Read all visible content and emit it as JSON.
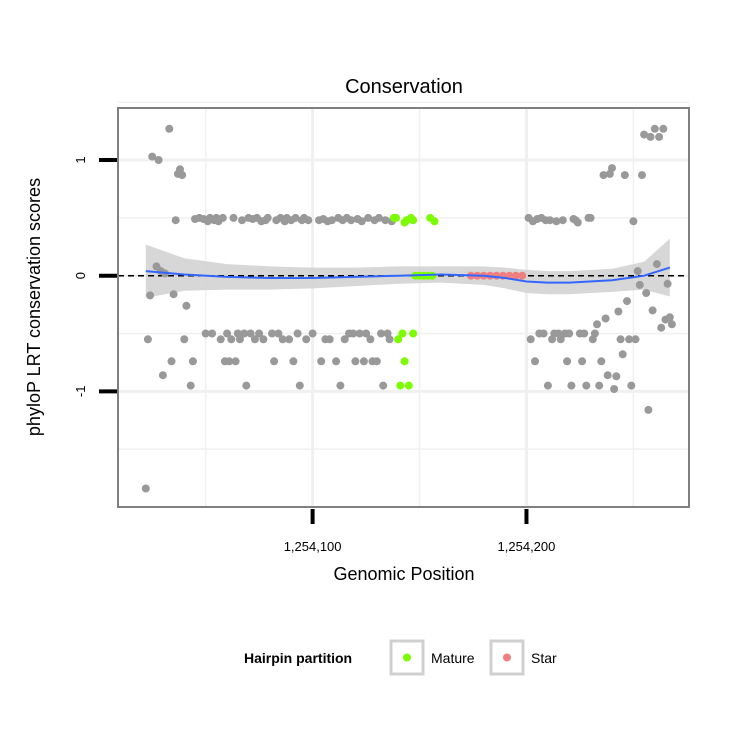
{
  "chart_data": {
    "type": "scatter",
    "title": "Conservation",
    "xlabel": "Genomic Position",
    "ylabel": "phyloP LRT conservation scores",
    "xlim": [
      1254009,
      1254276
    ],
    "ylim": [
      -2,
      1.45
    ],
    "x_ticks": [
      {
        "value": 1254100,
        "label": "1,254,100"
      },
      {
        "value": 1254200,
        "label": "1,254,200"
      }
    ],
    "y_ticks": [
      {
        "value": 1,
        "label": "1"
      },
      {
        "value": 0,
        "label": "0"
      },
      {
        "value": -1,
        "label": "-1"
      }
    ],
    "reference_line": {
      "y": 0,
      "style": "dashed",
      "color": "#000000"
    },
    "colors": {
      "background": "#ffffff",
      "gridline": "#f0f0f0",
      "panel_border": "#7f7f7f",
      "point_default": "#999999",
      "mature": "#7cfc00",
      "star": "#f08080",
      "smooth_line": "#3366ff",
      "ribbon": "#d3d3d3"
    },
    "partitions": [
      {
        "name": "Mature",
        "x_range": [
          1254143,
          1254157
        ]
      },
      {
        "name": "Star",
        "x_range": [
          1254174,
          1254200
        ]
      }
    ],
    "legend": {
      "title": "Hairpin partition",
      "position": "bottom",
      "entries": [
        {
          "label": "Mature",
          "color": "#7cfc00"
        },
        {
          "label": "Star",
          "color": "#f08080"
        }
      ]
    },
    "smooth": {
      "x": [
        1254022,
        1254040,
        1254060,
        1254080,
        1254100,
        1254120,
        1254140,
        1254160,
        1254180,
        1254190,
        1254200,
        1254210,
        1254220,
        1254240,
        1254255,
        1254267
      ],
      "y": [
        0.04,
        0.01,
        -0.01,
        -0.02,
        -0.02,
        -0.01,
        0.0,
        0.01,
        0.0,
        -0.02,
        -0.05,
        -0.06,
        -0.06,
        -0.04,
        0.0,
        0.07
      ],
      "upper": [
        0.27,
        0.15,
        0.1,
        0.08,
        0.07,
        0.07,
        0.08,
        0.08,
        0.08,
        0.07,
        0.05,
        0.04,
        0.04,
        0.06,
        0.12,
        0.32
      ],
      "lower": [
        -0.19,
        -0.13,
        -0.12,
        -0.12,
        -0.11,
        -0.09,
        -0.07,
        -0.06,
        -0.08,
        -0.11,
        -0.15,
        -0.16,
        -0.16,
        -0.14,
        -0.12,
        -0.18
      ]
    },
    "series": [
      {
        "name": "Other",
        "color": "#999999",
        "points": [
          [
            1254022,
            -1.84
          ],
          [
            1254023,
            -0.55
          ],
          [
            1254024,
            -0.17
          ],
          [
            1254025,
            1.03
          ],
          [
            1254027,
            0.08
          ],
          [
            1254028,
            1.0
          ],
          [
            1254029,
            0.04
          ],
          [
            1254030,
            -0.86
          ],
          [
            1254031,
            0.02
          ],
          [
            1254033,
            1.27
          ],
          [
            1254034,
            -0.74
          ],
          [
            1254035,
            -0.16
          ],
          [
            1254036,
            0.48
          ],
          [
            1254037,
            0.88
          ],
          [
            1254038,
            0.92
          ],
          [
            1254039,
            0.87
          ],
          [
            1254040,
            -0.55
          ],
          [
            1254041,
            -0.26
          ],
          [
            1254043,
            -0.95
          ],
          [
            1254044,
            -0.74
          ],
          [
            1254045,
            0.49
          ],
          [
            1254047,
            0.5
          ],
          [
            1254049,
            0.49
          ],
          [
            1254050,
            -0.5
          ],
          [
            1254051,
            0.47
          ],
          [
            1254052,
            0.5
          ],
          [
            1254053,
            -0.5
          ],
          [
            1254054,
            0.48
          ],
          [
            1254055,
            0.5
          ],
          [
            1254056,
            0.47
          ],
          [
            1254057,
            -0.55
          ],
          [
            1254058,
            0.5
          ],
          [
            1254059,
            -0.74
          ],
          [
            1254060,
            -0.5
          ],
          [
            1254061,
            -0.74
          ],
          [
            1254062,
            -0.55
          ],
          [
            1254063,
            0.5
          ],
          [
            1254064,
            -0.74
          ],
          [
            1254065,
            -0.5
          ],
          [
            1254066,
            -0.55
          ],
          [
            1254067,
            0.48
          ],
          [
            1254068,
            -0.5
          ],
          [
            1254069,
            -0.95
          ],
          [
            1254070,
            0.5
          ],
          [
            1254071,
            -0.5
          ],
          [
            1254072,
            0.49
          ],
          [
            1254073,
            -0.55
          ],
          [
            1254074,
            0.5
          ],
          [
            1254075,
            -0.5
          ],
          [
            1254076,
            0.47
          ],
          [
            1254077,
            -0.55
          ],
          [
            1254078,
            0.48
          ],
          [
            1254079,
            0.5
          ],
          [
            1254081,
            -0.5
          ],
          [
            1254082,
            -0.74
          ],
          [
            1254083,
            0.48
          ],
          [
            1254084,
            -0.5
          ],
          [
            1254085,
            0.5
          ],
          [
            1254086,
            -0.55
          ],
          [
            1254087,
            0.47
          ],
          [
            1254088,
            0.5
          ],
          [
            1254089,
            -0.55
          ],
          [
            1254090,
            0.48
          ],
          [
            1254091,
            -0.74
          ],
          [
            1254092,
            0.5
          ],
          [
            1254093,
            -0.5
          ],
          [
            1254094,
            -0.95
          ],
          [
            1254095,
            0.48
          ],
          [
            1254096,
            0.5
          ],
          [
            1254097,
            -0.55
          ],
          [
            1254098,
            0.48
          ],
          [
            1254100,
            -0.5
          ],
          [
            1254103,
            0.48
          ],
          [
            1254104,
            -0.74
          ],
          [
            1254105,
            0.49
          ],
          [
            1254106,
            -0.55
          ],
          [
            1254107,
            0.47
          ],
          [
            1254108,
            -0.55
          ],
          [
            1254109,
            0.48
          ],
          [
            1254111,
            -0.74
          ],
          [
            1254112,
            0.5
          ],
          [
            1254113,
            -0.95
          ],
          [
            1254114,
            0.48
          ],
          [
            1254115,
            -0.55
          ],
          [
            1254116,
            0.5
          ],
          [
            1254117,
            -0.5
          ],
          [
            1254118,
            0.48
          ],
          [
            1254119,
            -0.5
          ],
          [
            1254120,
            -0.74
          ],
          [
            1254121,
            0.49
          ],
          [
            1254122,
            -0.5
          ],
          [
            1254123,
            0.47
          ],
          [
            1254124,
            -0.74
          ],
          [
            1254125,
            -0.5
          ],
          [
            1254126,
            0.5
          ],
          [
            1254127,
            -0.55
          ],
          [
            1254128,
            -0.74
          ],
          [
            1254129,
            0.48
          ],
          [
            1254130,
            -0.74
          ],
          [
            1254131,
            0.5
          ],
          [
            1254132,
            -0.5
          ],
          [
            1254133,
            -0.95
          ],
          [
            1254134,
            0.48
          ],
          [
            1254135,
            -0.5
          ],
          [
            1254136,
            -0.55
          ],
          [
            1254137,
            0.47
          ],
          [
            1254201,
            0.5
          ],
          [
            1254202,
            -0.55
          ],
          [
            1254203,
            0.47
          ],
          [
            1254204,
            -0.74
          ],
          [
            1254205,
            0.49
          ],
          [
            1254206,
            -0.5
          ],
          [
            1254207,
            0.5
          ],
          [
            1254208,
            -0.5
          ],
          [
            1254209,
            0.48
          ],
          [
            1254210,
            -0.95
          ],
          [
            1254211,
            0.48
          ],
          [
            1254212,
            -0.55
          ],
          [
            1254213,
            -0.5
          ],
          [
            1254214,
            0.47
          ],
          [
            1254215,
            -0.5
          ],
          [
            1254216,
            -0.55
          ],
          [
            1254217,
            0.48
          ],
          [
            1254218,
            -0.5
          ],
          [
            1254219,
            -0.74
          ],
          [
            1254220,
            -0.5
          ],
          [
            1254221,
            -0.95
          ],
          [
            1254222,
            0.49
          ],
          [
            1254223,
            0.48
          ],
          [
            1254224,
            0.46
          ],
          [
            1254225,
            -0.5
          ],
          [
            1254226,
            -0.74
          ],
          [
            1254227,
            -0.5
          ],
          [
            1254228,
            -0.95
          ],
          [
            1254229,
            0.5
          ],
          [
            1254230,
            0.5
          ],
          [
            1254231,
            -0.55
          ],
          [
            1254232,
            -0.5
          ],
          [
            1254233,
            -0.42
          ],
          [
            1254234,
            -0.95
          ],
          [
            1254235,
            -0.74
          ],
          [
            1254236,
            0.87
          ],
          [
            1254237,
            -0.37
          ],
          [
            1254238,
            -0.86
          ],
          [
            1254239,
            0.88
          ],
          [
            1254240,
            0.93
          ],
          [
            1254241,
            -0.98
          ],
          [
            1254242,
            -0.87
          ],
          [
            1254243,
            -0.31
          ],
          [
            1254244,
            -0.55
          ],
          [
            1254245,
            -0.68
          ],
          [
            1254246,
            0.87
          ],
          [
            1254247,
            -0.22
          ],
          [
            1254248,
            -0.55
          ],
          [
            1254249,
            -0.95
          ],
          [
            1254250,
            0.47
          ],
          [
            1254251,
            -0.55
          ],
          [
            1254252,
            0.04
          ],
          [
            1254253,
            -0.08
          ],
          [
            1254254,
            0.87
          ],
          [
            1254255,
            1.22
          ],
          [
            1254256,
            -0.15
          ],
          [
            1254257,
            -1.16
          ],
          [
            1254258,
            1.2
          ],
          [
            1254259,
            -0.3
          ],
          [
            1254260,
            1.27
          ],
          [
            1254261,
            0.1
          ],
          [
            1254262,
            1.2
          ],
          [
            1254263,
            -0.45
          ],
          [
            1254264,
            1.27
          ],
          [
            1254265,
            -0.38
          ],
          [
            1254266,
            -0.07
          ],
          [
            1254267,
            -0.36
          ],
          [
            1254268,
            -0.42
          ]
        ]
      },
      {
        "name": "Mature",
        "color": "#7cfc00",
        "points": [
          [
            1254138,
            0.5
          ],
          [
            1254139,
            0.5
          ],
          [
            1254140,
            -0.55
          ],
          [
            1254141,
            -0.95
          ],
          [
            1254142,
            -0.5
          ],
          [
            1254143,
            0.46
          ],
          [
            1254143,
            -0.74
          ],
          [
            1254144,
            0.48
          ],
          [
            1254145,
            -0.95
          ],
          [
            1254146,
            0.5
          ],
          [
            1254147,
            0.48
          ],
          [
            1254147,
            -0.5
          ],
          [
            1254155,
            0.5
          ],
          [
            1254157,
            0.47
          ],
          [
            1254148,
            0.0
          ],
          [
            1254150,
            0.0
          ],
          [
            1254152,
            0.0
          ],
          [
            1254154,
            0.0
          ],
          [
            1254156,
            0.0
          ]
        ]
      },
      {
        "name": "Star",
        "color": "#f08080",
        "points": [
          [
            1254174,
            0.0
          ],
          [
            1254177,
            0.0
          ],
          [
            1254180,
            0.0
          ],
          [
            1254183,
            0.0
          ],
          [
            1254186,
            0.0
          ],
          [
            1254189,
            0.0
          ],
          [
            1254192,
            0.0
          ],
          [
            1254195,
            0.0
          ],
          [
            1254198,
            0.0
          ]
        ]
      }
    ]
  }
}
